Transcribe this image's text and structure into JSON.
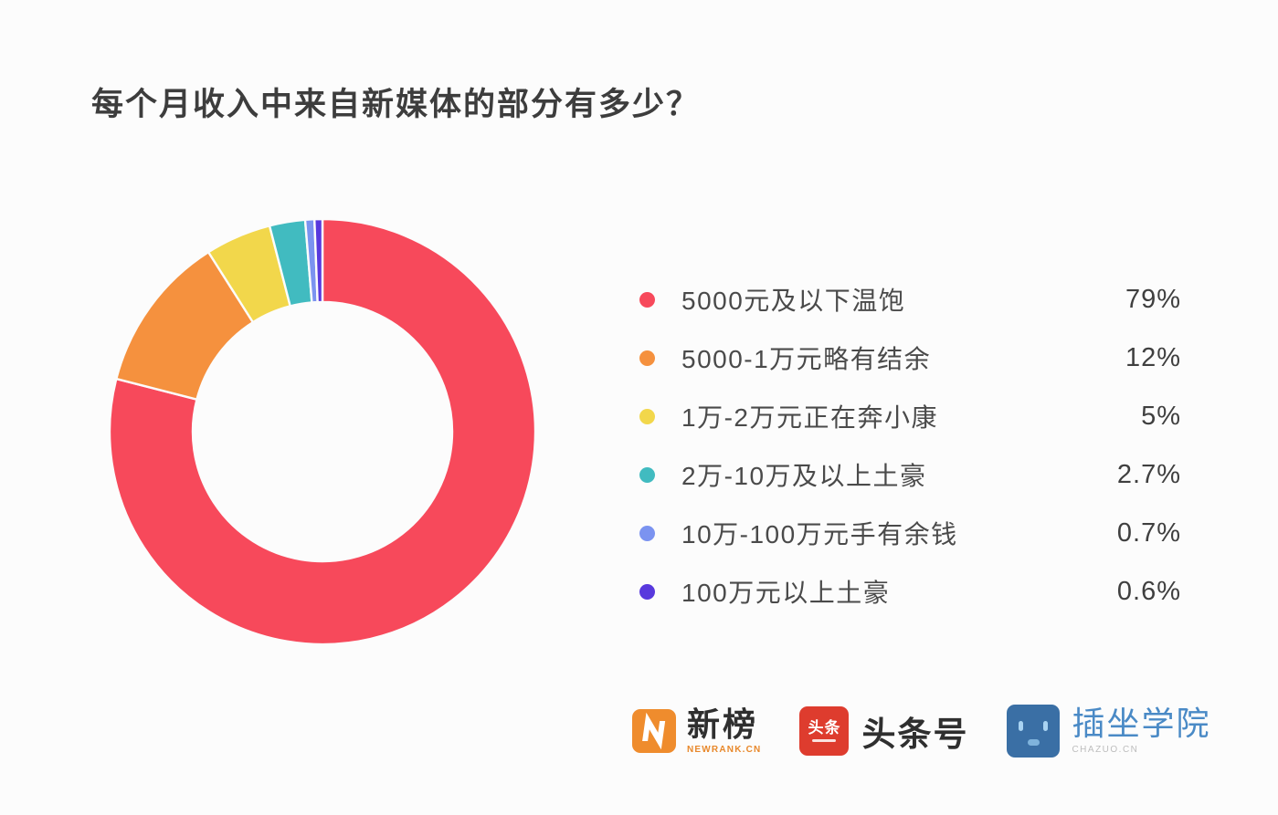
{
  "title": "每个月收入中来自新媒体的部分有多少？",
  "chart_data": {
    "type": "pie",
    "subtype": "donut",
    "title": "每个月收入中来自新媒体的部分有多少？",
    "legend_position": "right",
    "start_angle_deg": 0,
    "direction": "clockwise",
    "inner_radius_ratio": 0.61,
    "series": [
      {
        "label": "5000元及以下温饱",
        "value": 79,
        "percent_label": "79%",
        "color": "#f7495b"
      },
      {
        "label": "5000-1万元略有结余",
        "value": 12,
        "percent_label": "12%",
        "color": "#f5913e"
      },
      {
        "label": "1万-2万元正在奔小康",
        "value": 5,
        "percent_label": "5%",
        "color": "#f2d74b"
      },
      {
        "label": "2万-10万及以上土豪",
        "value": 2.7,
        "percent_label": "2.7%",
        "color": "#41bbc0"
      },
      {
        "label": "10万-100万元手有余钱",
        "value": 0.7,
        "percent_label": "0.7%",
        "color": "#7b93f0"
      },
      {
        "label": "100万元以上土豪",
        "value": 0.6,
        "percent_label": "0.6%",
        "color": "#5839dd"
      }
    ]
  },
  "footer": {
    "logos": [
      {
        "name": "newrank",
        "label": "新榜",
        "sublabel": "NEWRANK.CN",
        "mark_color": "#ef8c2d",
        "label_color": "#2f2f2f"
      },
      {
        "name": "toutiao",
        "label": "头条号",
        "icon_text": "头条",
        "mark_color": "#de3c2e",
        "label_color": "#2f2f2f"
      },
      {
        "name": "chazuo",
        "label": "插坐学院",
        "sublabel": "CHAZUO.CN",
        "mark_color": "#3a6fa5",
        "label_color": "#4a8ac6"
      }
    ]
  }
}
